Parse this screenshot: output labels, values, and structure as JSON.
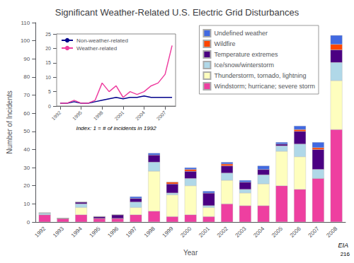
{
  "chart_data": [
    {
      "type": "bar",
      "title": "Significant Weather-Related U.S. Electric Grid Disturbances",
      "xlabel": "Year",
      "ylabel": "Number of Incidents",
      "categories": [
        1992,
        1993,
        1994,
        1995,
        1996,
        1997,
        1998,
        1999,
        2000,
        2001,
        2002,
        2003,
        2004,
        2005,
        2006,
        2007,
        2008
      ],
      "series": [
        {
          "name": "Windstorm; hurricane; severe storm",
          "color": "#EE3FA0",
          "values": [
            4,
            2,
            4,
            2,
            2,
            4,
            6,
            3,
            4,
            3,
            10,
            9,
            9,
            20,
            18,
            24,
            51
          ]
        },
        {
          "name": "Thunderstorm, tornado, lightning",
          "color": "#FEFEBE",
          "values": [
            0,
            0,
            4,
            0,
            0,
            4,
            22,
            12,
            16,
            5,
            13,
            7,
            12,
            19,
            18,
            0,
            27
          ]
        },
        {
          "name": "Ice/snow/winterstorm",
          "color": "#B0D8E8",
          "values": [
            1,
            0,
            2,
            0,
            0,
            3,
            5,
            1,
            4,
            1,
            4,
            2,
            5,
            3,
            7,
            5,
            10
          ]
        },
        {
          "name": "Temperature extremes",
          "color": "#4B0082",
          "values": [
            0,
            0,
            1,
            1,
            2,
            2,
            4,
            5,
            4,
            7,
            4,
            4,
            3,
            1,
            7,
            11,
            7
          ]
        },
        {
          "name": "Wildfire",
          "color": "#FF4500",
          "values": [
            0,
            0,
            0,
            0,
            0,
            0,
            0,
            1,
            1,
            0,
            1,
            0,
            0,
            0,
            1,
            1,
            3
          ]
        },
        {
          "name": "Undefined weather",
          "color": "#4169E1",
          "values": [
            0,
            0,
            0,
            0,
            0,
            1,
            1,
            0,
            1,
            1,
            1,
            1,
            2,
            1,
            2,
            3,
            5
          ]
        }
      ],
      "stacked": true,
      "ylim": [
        0,
        110
      ],
      "yticks": [
        0,
        10,
        20,
        30,
        40,
        50,
        60,
        70,
        80,
        90,
        100,
        110
      ],
      "grid": false,
      "legend": "upper right",
      "annotations": [
        "EIA",
        "216"
      ]
    },
    {
      "type": "line",
      "x": [
        1992,
        1993,
        1994,
        1995,
        1996,
        1997,
        1998,
        1999,
        2000,
        2001,
        2002,
        2003,
        2004,
        2005,
        2006,
        2007,
        2008
      ],
      "series": [
        {
          "name": "Non-weather-related",
          "color": "darkblue",
          "values": [
            1.0,
            1.0,
            1.5,
            1.0,
            1.0,
            1.5,
            2.0,
            2.5,
            3.0,
            2.5,
            3.0,
            3.0,
            3.5,
            3.0,
            3.0,
            3.0,
            3.0
          ]
        },
        {
          "name": "Weather-related",
          "color": "#EE3FA0",
          "values": [
            1.0,
            1.0,
            2.0,
            1.0,
            1.0,
            2.0,
            8.0,
            5.0,
            7.0,
            3.0,
            5.0,
            4.0,
            5.0,
            7.0,
            8.0,
            11.0,
            21.0
          ]
        }
      ],
      "xlim": [
        1991.5,
        2008.5
      ],
      "xticks": [
        1992,
        1995,
        1998,
        2001,
        2004,
        2007
      ],
      "ylim": [
        0,
        25
      ],
      "yticks": [
        0,
        5,
        10,
        15,
        20,
        25
      ],
      "grid": false,
      "legend": "upper left",
      "annotations": [
        "Index: 1 = # of incidents in 1992"
      ]
    }
  ]
}
